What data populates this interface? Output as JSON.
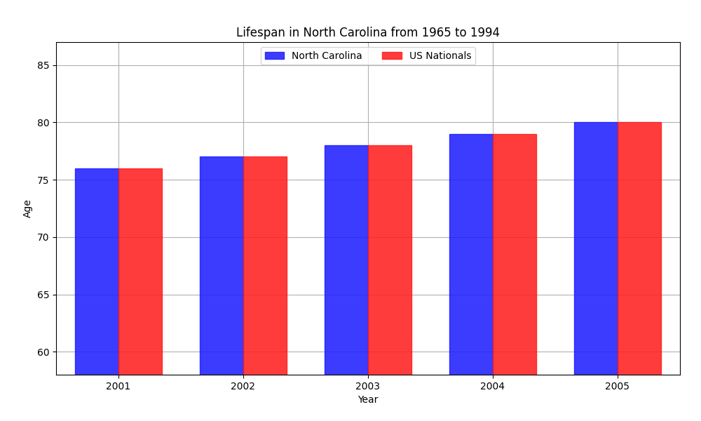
{
  "chart_data": {
    "type": "bar",
    "title": "Lifespan in North Carolina from 1965 to 1994",
    "x_label": "Year",
    "y_label": "Age",
    "categories": [
      "2001",
      "2002",
      "2003",
      "2004",
      "2005"
    ],
    "series": [
      {
        "name": "North Carolina",
        "color": "#1a1aff",
        "values": [
          76,
          77,
          78,
          79,
          80
        ]
      },
      {
        "name": "US Nationals",
        "color": "#ff1a1a",
        "values": [
          76,
          77,
          78,
          79,
          80
        ]
      }
    ],
    "ylim": [
      58,
      87
    ],
    "yticks": [
      60,
      65,
      70,
      75,
      80,
      85
    ],
    "grid": true,
    "legend": "upper center"
  }
}
